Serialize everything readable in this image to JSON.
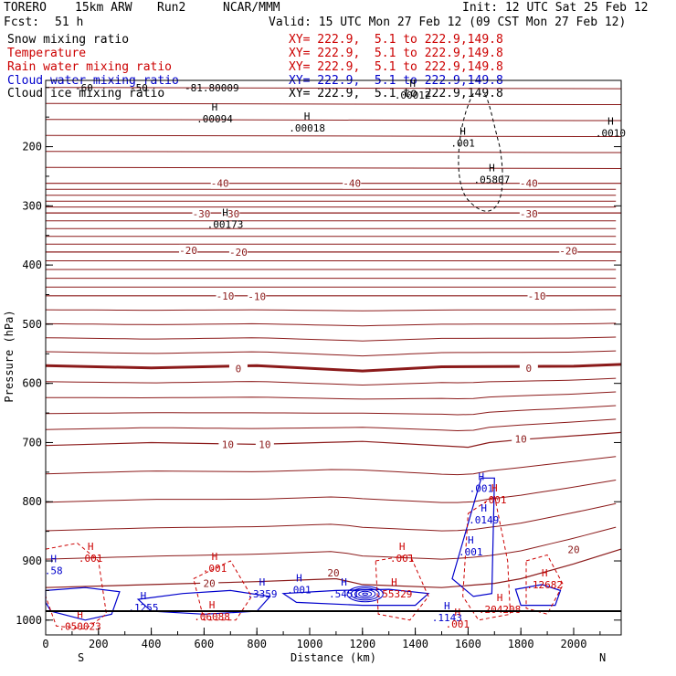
{
  "header": {
    "model": "TORERO",
    "resolution": "15km ARW",
    "run": "Run2",
    "org": "NCAR/MMM",
    "init": "Init: 12 UTC Sat 25 Feb 12",
    "fcst_label": "Fcst:",
    "fcst_value": "51 h",
    "valid": "Valid: 15 UTC Mon 27 Feb 12 (09 CST Mon 27 Feb 12)"
  },
  "fields": [
    {
      "name": "Snow mixing ratio",
      "xy": "XY= 222.9,  5.1 to 222.9,149.8",
      "color": "#000000"
    },
    {
      "name": "Temperature",
      "xy": "XY= 222.9,  5.1 to 222.9,149.8",
      "color": "#cc0000"
    },
    {
      "name": "Rain water mixing ratio",
      "xy": "XY= 222.9,  5.1 to 222.9,149.8",
      "color": "#cc0000"
    },
    {
      "name": "Cloud water mixing ratio",
      "xy": "XY= 222.9,  5.1 to 222.9,149.8",
      "color": "#0000cc"
    },
    {
      "name": "Cloud ice mixing ratio",
      "xy": "XY= 222.9,  5.1 to 222.9,149.8",
      "color": "#000000"
    }
  ],
  "chart_data": {
    "type": "line",
    "xlabel": "Distance (km)",
    "ylabel": "Pressure (hPa)",
    "xlim": [
      0,
      2180
    ],
    "ylim": [
      1025,
      88
    ],
    "x_ticks": [
      0,
      200,
      400,
      600,
      800,
      1000,
      1200,
      1400,
      1600,
      1800,
      2000
    ],
    "y_ticks": [
      200,
      300,
      400,
      500,
      600,
      700,
      800,
      900,
      1000
    ],
    "x_end_labels": [
      "S",
      "N"
    ],
    "temperature_isotherms": [
      {
        "label": "-40",
        "values": [
          [
            0,
            262
          ],
          [
            600,
            262
          ],
          [
            1200,
            262
          ],
          [
            1600,
            262
          ],
          [
            1700,
            262
          ],
          [
            2180,
            262
          ]
        ]
      },
      {
        "label": "-30",
        "values": [
          [
            0,
            312
          ],
          [
            600,
            312
          ],
          [
            1200,
            312
          ],
          [
            1700,
            312
          ],
          [
            2180,
            312
          ]
        ]
      },
      {
        "label": "-20",
        "values": [
          [
            0,
            378
          ],
          [
            600,
            378
          ],
          [
            1200,
            378
          ],
          [
            2180,
            378
          ]
        ]
      },
      {
        "label": "-10",
        "values": [
          [
            0,
            452
          ],
          [
            600,
            452
          ],
          [
            1200,
            452
          ],
          [
            2180,
            452
          ]
        ]
      },
      {
        "label": "0",
        "values": [
          [
            0,
            570
          ],
          [
            400,
            574
          ],
          [
            800,
            570
          ],
          [
            1200,
            579
          ],
          [
            1500,
            572
          ],
          [
            2000,
            571
          ],
          [
            2180,
            568
          ]
        ]
      },
      {
        "label": "10",
        "values": [
          [
            0,
            705
          ],
          [
            400,
            700
          ],
          [
            800,
            703
          ],
          [
            1200,
            698
          ],
          [
            1600,
            708
          ],
          [
            1680,
            700
          ],
          [
            1800,
            695
          ],
          [
            2180,
            683
          ]
        ]
      },
      {
        "label": "20",
        "values": [
          [
            0,
            945
          ],
          [
            400,
            940
          ],
          [
            800,
            935
          ],
          [
            1100,
            930
          ],
          [
            1200,
            940
          ],
          [
            1500,
            945
          ],
          [
            1700,
            938
          ],
          [
            1800,
            930
          ],
          [
            2000,
            905
          ],
          [
            2180,
            880
          ]
        ]
      }
    ],
    "upper_isotherm_labels": [
      "-60",
      "-50",
      "-81.80009"
    ],
    "contour_labels": [
      {
        "text": "-40",
        "x": 660,
        "p": 262,
        "color": "#8b1a1a"
      },
      {
        "text": "-40",
        "x": 1160,
        "p": 262,
        "color": "#8b1a1a"
      },
      {
        "text": "-40",
        "x": 1830,
        "p": 262,
        "color": "#8b1a1a"
      },
      {
        "text": "-30",
        "x": 590,
        "p": 313,
        "color": "#8b1a1a"
      },
      {
        "text": "-30",
        "x": 700,
        "p": 313,
        "color": "#8b1a1a"
      },
      {
        "text": "-30",
        "x": 1830,
        "p": 313,
        "color": "#8b1a1a"
      },
      {
        "text": "-20",
        "x": 540,
        "p": 375,
        "color": "#8b1a1a"
      },
      {
        "text": "-20",
        "x": 730,
        "p": 378,
        "color": "#8b1a1a"
      },
      {
        "text": "-20",
        "x": 1980,
        "p": 376,
        "color": "#8b1a1a"
      },
      {
        "text": "-10",
        "x": 680,
        "p": 452,
        "color": "#8b1a1a"
      },
      {
        "text": "-10",
        "x": 800,
        "p": 453,
        "color": "#8b1a1a"
      },
      {
        "text": "-10",
        "x": 1860,
        "p": 452,
        "color": "#8b1a1a"
      },
      {
        "text": "0",
        "x": 730,
        "p": 575,
        "color": "#8b1a1a"
      },
      {
        "text": "0",
        "x": 1830,
        "p": 574,
        "color": "#8b1a1a"
      },
      {
        "text": "10",
        "x": 690,
        "p": 703,
        "color": "#8b1a1a"
      },
      {
        "text": "10",
        "x": 830,
        "p": 703,
        "color": "#8b1a1a"
      },
      {
        "text": "10",
        "x": 1800,
        "p": 694,
        "color": "#8b1a1a"
      },
      {
        "text": "20",
        "x": 1090,
        "p": 920,
        "color": "#8b1a1a"
      },
      {
        "text": "20",
        "x": 2000,
        "p": 881,
        "color": "#8b1a1a"
      },
      {
        "text": "20",
        "x": 620,
        "p": 938,
        "color": "#8b1a1a"
      }
    ],
    "maxima_labels": [
      {
        "text": ".00094",
        "x": 640,
        "p": 154,
        "color": "#000000"
      },
      {
        "text": ".00018",
        "x": 990,
        "p": 170,
        "color": "#000000"
      },
      {
        "text": ".00012",
        "x": 1390,
        "p": 114,
        "color": "#000000"
      },
      {
        "text": ".0010",
        "x": 2140,
        "p": 178,
        "color": "#000000"
      },
      {
        "text": ".05807",
        "x": 1690,
        "p": 257,
        "color": "#000000"
      },
      {
        "text": ".00173",
        "x": 680,
        "p": 333,
        "color": "#000000"
      },
      {
        "text": ".001",
        "x": 1580,
        "p": 195,
        "color": "#000000"
      },
      {
        "text": ".001",
        "x": 1650,
        "p": 779,
        "color": "#0000cc"
      },
      {
        "text": ".001",
        "x": 1700,
        "p": 798,
        "color": "#cc0000"
      },
      {
        "text": ".0149",
        "x": 1660,
        "p": 832,
        "color": "#0000cc"
      },
      {
        "text": ".001",
        "x": 1610,
        "p": 886,
        "color": "#0000cc"
      },
      {
        "text": ".001",
        "x": 170,
        "p": 897,
        "color": "#cc0000"
      },
      {
        "text": ".001",
        "x": 640,
        "p": 914,
        "color": "#cc0000"
      },
      {
        "text": ".001",
        "x": 1350,
        "p": 897,
        "color": "#cc0000"
      },
      {
        "text": ".1255",
        "x": 370,
        "p": 980,
        "color": "#0000cc"
      },
      {
        "text": ".3359",
        "x": 820,
        "p": 957,
        "color": "#0000cc"
      },
      {
        "text": ".001",
        "x": 960,
        "p": 950,
        "color": "#0000cc"
      },
      {
        "text": ".5451",
        "x": 1130,
        "p": 957,
        "color": "#0000cc"
      },
      {
        "text": ".55329",
        "x": 1320,
        "p": 957,
        "color": "#cc0000"
      },
      {
        "text": ".1143",
        "x": 1520,
        "p": 997,
        "color": "#0000cc"
      },
      {
        "text": ".204208",
        "x": 1720,
        "p": 983,
        "color": "#cc0000"
      },
      {
        "text": ".06088",
        "x": 630,
        "p": 996,
        "color": "#cc0000"
      },
      {
        "text": ".050023",
        "x": 130,
        "p": 1012,
        "color": "#cc0000"
      },
      {
        "text": ".001",
        "x": 1560,
        "p": 1008,
        "color": "#cc0000"
      },
      {
        "text": ".58",
        "x": 30,
        "p": 918,
        "color": "#0000cc"
      },
      {
        "text": ".12682",
        "x": 1890,
        "p": 942,
        "color": "#cc0000"
      }
    ]
  }
}
